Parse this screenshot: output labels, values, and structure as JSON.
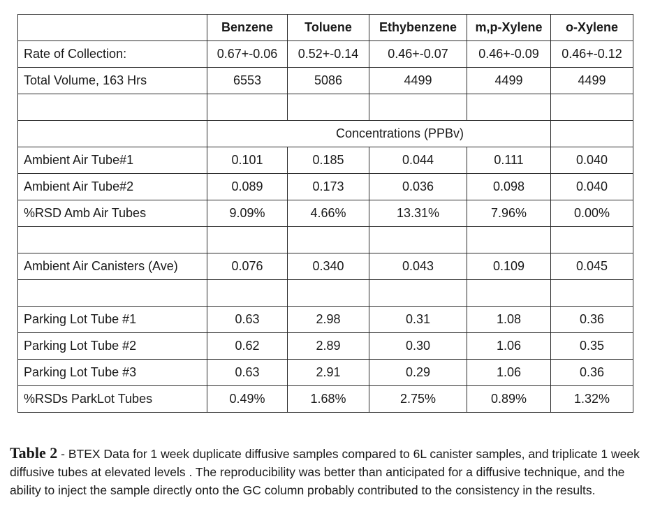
{
  "table": {
    "headers": [
      "",
      "Benzene",
      "Toluene",
      "Ethybenzene",
      "m,p-Xylene",
      "o-Xylene"
    ],
    "rate_row": {
      "label": "Rate of Collection:",
      "values": [
        "0.67+-0.06",
        "0.52+-0.14",
        "0.46+-0.07",
        "0.46+-0.09",
        "0.46+-0.12"
      ]
    },
    "volume_row": {
      "label": "Total Volume, 163 Hrs",
      "values": [
        "6553",
        "5086",
        "4499",
        "4499",
        "4499"
      ]
    },
    "concentrations_label": "Concentrations (PPBv)",
    "tube_rows": [
      {
        "label": "Ambient Air Tube#1",
        "values": [
          "0.101",
          "0.185",
          "0.044",
          "0.111",
          "0.040"
        ]
      },
      {
        "label": "Ambient Air Tube#2",
        "values": [
          "0.089",
          "0.173",
          "0.036",
          "0.098",
          "0.040"
        ]
      },
      {
        "label": "%RSD Amb Air Tubes",
        "values": [
          "9.09%",
          "4.66%",
          "13.31%",
          "7.96%",
          "0.00%"
        ]
      }
    ],
    "canister_row": {
      "label": "Ambient Air Canisters (Ave)",
      "values": [
        "0.076",
        "0.340",
        "0.043",
        "0.109",
        "0.045"
      ]
    },
    "parking_rows": [
      {
        "label": "Parking Lot Tube #1",
        "values": [
          "0.63",
          "2.98",
          "0.31",
          "1.08",
          "0.36"
        ]
      },
      {
        "label": "Parking Lot Tube #2",
        "values": [
          "0.62",
          "2.89",
          "0.30",
          "1.06",
          "0.35"
        ]
      },
      {
        "label": "Parking Lot Tube #3",
        "values": [
          "0.63",
          "2.91",
          "0.29",
          "1.06",
          "0.36"
        ]
      },
      {
        "label": "%RSDs ParkLot Tubes",
        "values": [
          "0.49%",
          "1.68%",
          "2.75%",
          "0.89%",
          "1.32%"
        ]
      }
    ]
  },
  "caption": {
    "title": "Table 2",
    "text": " - BTEX Data for 1 week duplicate diffusive samples compared to 6L canister samples, and triplicate 1 week diffusive tubes at elevated levels . The reproducibility was better than anticipated for a diffusive technique, and the ability to inject the sample directly onto the GC column probably contributed to the consistency in the results."
  }
}
